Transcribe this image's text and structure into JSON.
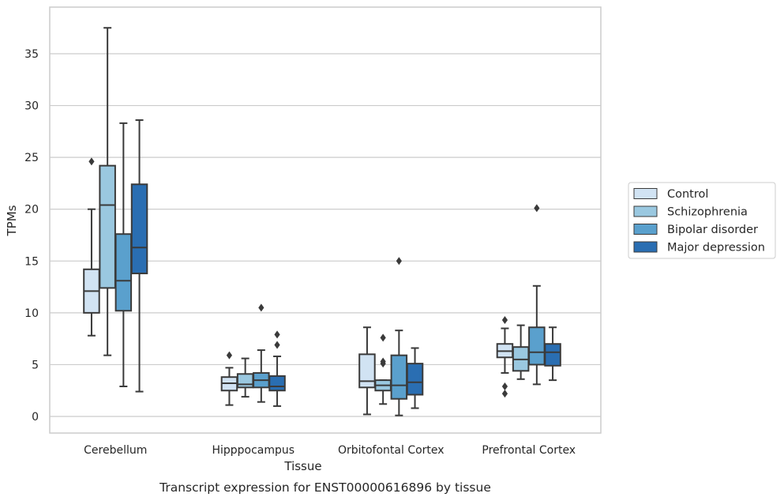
{
  "chart_data": {
    "type": "box",
    "title": "",
    "caption": "Transcript expression for ENST00000616896 by tissue",
    "xlabel": "Tissue",
    "ylabel": "TPMs",
    "ylim": [
      -1.6,
      39.5
    ],
    "yticks": [
      0,
      5,
      10,
      15,
      20,
      25,
      30,
      35
    ],
    "grid": "horizontal",
    "legend_position": "right",
    "categories": [
      "Cerebellum",
      "Hipppocampus",
      "Orbitofontal Cortex",
      "Prefrontal Cortex"
    ],
    "series": [
      {
        "name": "Control",
        "color": "#d1e3f3",
        "boxes": [
          {
            "whislo": 7.8,
            "q1": 10.0,
            "med": 12.1,
            "q3": 14.2,
            "whishi": 20.0,
            "fliers": [
              24.6
            ]
          },
          {
            "whislo": 1.1,
            "q1": 2.5,
            "med": 3.2,
            "q3": 3.8,
            "whishi": 4.7,
            "fliers": [
              5.9
            ]
          },
          {
            "whislo": 0.2,
            "q1": 2.8,
            "med": 3.4,
            "q3": 6.0,
            "whishi": 8.6,
            "fliers": []
          },
          {
            "whislo": 4.2,
            "q1": 5.7,
            "med": 6.3,
            "q3": 7.0,
            "whishi": 8.5,
            "fliers": [
              9.3,
              2.9,
              2.2
            ]
          }
        ]
      },
      {
        "name": "Schizophrenia",
        "color": "#9ac8e0",
        "boxes": [
          {
            "whislo": 5.9,
            "q1": 12.4,
            "med": 20.4,
            "q3": 24.2,
            "whishi": 37.5,
            "fliers": []
          },
          {
            "whislo": 1.9,
            "q1": 2.8,
            "med": 3.1,
            "q3": 4.1,
            "whishi": 5.6,
            "fliers": []
          },
          {
            "whislo": 1.2,
            "q1": 2.5,
            "med": 3.0,
            "q3": 3.5,
            "whishi": 3.5,
            "fliers": [
              7.6,
              5.3,
              5.1
            ]
          },
          {
            "whislo": 3.6,
            "q1": 4.4,
            "med": 5.5,
            "q3": 6.7,
            "whishi": 8.8,
            "fliers": []
          }
        ]
      },
      {
        "name": "Bipolar disorder",
        "color": "#5aa0cd",
        "boxes": [
          {
            "whislo": 2.9,
            "q1": 10.2,
            "med": 13.1,
            "q3": 17.6,
            "whishi": 28.3,
            "fliers": []
          },
          {
            "whislo": 1.4,
            "q1": 2.8,
            "med": 3.5,
            "q3": 4.2,
            "whishi": 6.4,
            "fliers": [
              10.5
            ]
          },
          {
            "whislo": 0.1,
            "q1": 1.7,
            "med": 3.0,
            "q3": 5.9,
            "whishi": 8.3,
            "fliers": [
              15.0
            ]
          },
          {
            "whislo": 3.1,
            "q1": 5.0,
            "med": 6.2,
            "q3": 8.6,
            "whishi": 12.6,
            "fliers": [
              20.1
            ]
          }
        ]
      },
      {
        "name": "Major depression",
        "color": "#2a6eb2",
        "boxes": [
          {
            "whislo": 2.4,
            "q1": 13.8,
            "med": 16.3,
            "q3": 22.4,
            "whishi": 28.6,
            "fliers": []
          },
          {
            "whislo": 1.0,
            "q1": 2.5,
            "med": 2.9,
            "q3": 3.9,
            "whishi": 5.8,
            "fliers": [
              7.9,
              6.9
            ]
          },
          {
            "whislo": 0.8,
            "q1": 2.1,
            "med": 3.3,
            "q3": 5.1,
            "whishi": 6.6,
            "fliers": []
          },
          {
            "whislo": 3.5,
            "q1": 4.9,
            "med": 6.2,
            "q3": 7.0,
            "whishi": 8.6,
            "fliers": []
          }
        ]
      }
    ]
  }
}
